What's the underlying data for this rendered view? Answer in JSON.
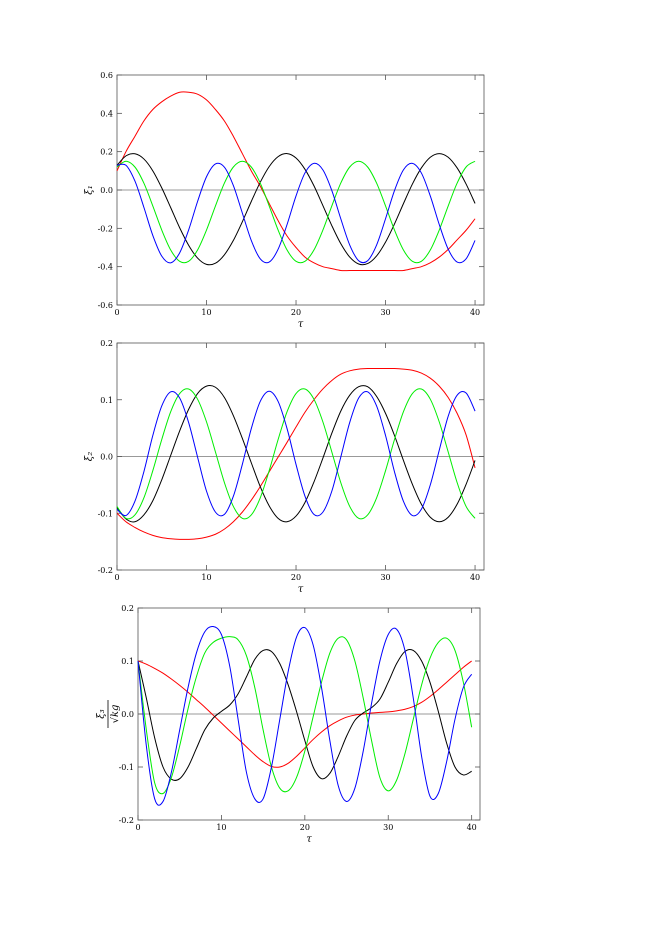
{
  "chart_data": [
    {
      "type": "line",
      "ylabel": "ξ₁",
      "xlabel": "τ",
      "x": [
        0,
        1,
        2,
        3,
        4,
        5,
        6,
        7,
        8,
        9,
        10,
        11,
        12,
        13,
        14,
        15,
        16,
        17,
        18,
        19,
        20,
        21,
        22,
        23,
        24,
        25,
        26,
        27,
        28,
        29,
        30,
        31,
        32,
        33,
        34,
        35,
        36,
        37,
        38,
        39,
        40
      ],
      "xlim": [
        0,
        41
      ],
      "xticks": [
        0,
        10,
        20,
        30,
        40
      ],
      "ylim": [
        -0.6,
        0.6
      ],
      "yticks": [
        0.6,
        0.4,
        0.2,
        {
          "value": 0,
          "label": "0.0"
        },
        -0.2,
        -0.4,
        -0.6
      ],
      "series": [
        {
          "color": "#ff0000",
          "values": [
            0.1,
            0.2,
            0.28,
            0.36,
            0.42,
            0.46,
            0.49,
            0.51,
            0.51,
            0.5,
            0.47,
            0.42,
            0.36,
            0.28,
            0.19,
            0.1,
            0.02,
            -0.07,
            -0.16,
            -0.24,
            -0.3,
            -0.35,
            -0.38,
            -0.4,
            -0.41,
            -0.42,
            -0.42,
            -0.42,
            -0.42,
            -0.42,
            -0.42,
            -0.42,
            -0.42,
            -0.41,
            -0.4,
            -0.38,
            -0.35,
            -0.31,
            -0.26,
            -0.21,
            -0.15
          ]
        },
        {
          "color": "#000000",
          "values": [
            0.129,
            0.178,
            0.189,
            0.162,
            0.1,
            0.011,
            -0.092,
            -0.197,
            -0.288,
            -0.355,
            -0.388,
            -0.382,
            -0.338,
            -0.263,
            -0.166,
            -0.06,
            0.04,
            0.122,
            0.174,
            0.19,
            0.167,
            0.108,
            0.022,
            -0.081,
            -0.186,
            -0.28,
            -0.35,
            -0.386,
            -0.384,
            -0.344,
            -0.272,
            -0.177,
            -0.071,
            0.031,
            0.115,
            0.171,
            0.19,
            0.171,
            0.115,
            0.031,
            -0.07
          ]
        },
        {
          "color": "#00ee00",
          "values": [
            0.12,
            0.15,
            0.12,
            0.036,
            -0.083,
            -0.209,
            -0.313,
            -0.372,
            -0.372,
            -0.313,
            -0.209,
            -0.083,
            0.036,
            0.12,
            0.15,
            0.12,
            0.036,
            -0.083,
            -0.209,
            -0.313,
            -0.372,
            -0.372,
            -0.313,
            -0.209,
            -0.083,
            0.036,
            0.12,
            0.15,
            0.12,
            0.036,
            -0.083,
            -0.209,
            -0.313,
            -0.372,
            -0.372,
            -0.313,
            -0.209,
            -0.083,
            0.036,
            0.12,
            0.15
          ]
        },
        {
          "color": "#0000ff",
          "values": [
            0.129,
            0.129,
            0.047,
            -0.09,
            -0.237,
            -0.345,
            -0.38,
            -0.328,
            -0.209,
            -0.06,
            0.069,
            0.136,
            0.119,
            0.023,
            -0.12,
            -0.263,
            -0.359,
            -0.376,
            -0.309,
            -0.18,
            -0.031,
            0.089,
            0.139,
            0.105,
            -0.003,
            -0.15,
            -0.287,
            -0.369,
            -0.369,
            -0.287,
            -0.15,
            -0.003,
            0.105,
            0.139,
            0.089,
            -0.031,
            -0.18,
            -0.309,
            -0.376,
            -0.359,
            -0.263
          ]
        }
      ]
    },
    {
      "type": "line",
      "ylabel": "ξ₂",
      "xlabel": "τ",
      "x": [
        0,
        1,
        2,
        3,
        4,
        5,
        6,
        7,
        8,
        9,
        10,
        11,
        12,
        13,
        14,
        15,
        16,
        17,
        18,
        19,
        20,
        21,
        22,
        23,
        24,
        25,
        26,
        27,
        28,
        29,
        30,
        31,
        32,
        33,
        34,
        35,
        36,
        37,
        38,
        39,
        40
      ],
      "xlim": [
        0,
        41
      ],
      "xticks": [
        0,
        10,
        20,
        30,
        40
      ],
      "ylim": [
        -0.2,
        0.2
      ],
      "yticks": [
        0.2,
        0.1,
        {
          "value": 0,
          "label": "0.0"
        },
        -0.1,
        -0.2
      ],
      "series": [
        {
          "color": "#ff0000",
          "values": [
            -0.1,
            -0.115,
            -0.125,
            -0.133,
            -0.139,
            -0.143,
            -0.145,
            -0.146,
            -0.146,
            -0.145,
            -0.142,
            -0.137,
            -0.128,
            -0.115,
            -0.098,
            -0.077,
            -0.053,
            -0.027,
            -0.001,
            0.025,
            0.052,
            0.078,
            0.1,
            0.119,
            0.134,
            0.145,
            0.151,
            0.154,
            0.155,
            0.155,
            0.155,
            0.155,
            0.154,
            0.152,
            0.147,
            0.138,
            0.124,
            0.104,
            0.076,
            0.038,
            -0.02
          ]
        },
        {
          "color": "#000000",
          "values": [
            -0.09,
            -0.11,
            -0.115,
            -0.103,
            -0.078,
            -0.041,
            0.002,
            0.045,
            0.083,
            0.111,
            0.124,
            0.122,
            0.104,
            0.072,
            0.032,
            -0.011,
            -0.053,
            -0.087,
            -0.109,
            -0.115,
            -0.105,
            -0.081,
            -0.045,
            -0.003,
            0.041,
            0.08,
            0.108,
            0.123,
            0.123,
            0.106,
            0.076,
            0.037,
            -0.007,
            -0.049,
            -0.084,
            -0.107,
            -0.115,
            -0.107,
            -0.084,
            -0.049,
            -0.007
          ]
        },
        {
          "color": "#00ee00",
          "values": [
            -0.088,
            -0.109,
            -0.103,
            -0.073,
            -0.025,
            0.03,
            0.079,
            0.111,
            0.119,
            0.101,
            0.061,
            0.008,
            -0.046,
            -0.088,
            -0.109,
            -0.103,
            -0.073,
            -0.025,
            0.03,
            0.079,
            0.111,
            0.119,
            0.101,
            0.061,
            0.008,
            -0.046,
            -0.088,
            -0.109,
            -0.103,
            -0.073,
            -0.025,
            0.03,
            0.079,
            0.111,
            0.119,
            0.101,
            0.061,
            0.008,
            -0.046,
            -0.088,
            -0.109
          ]
        },
        {
          "color": "#0000ff",
          "values": [
            -0.093,
            -0.104,
            -0.079,
            -0.027,
            0.037,
            0.089,
            0.114,
            0.103,
            0.06,
            -0.001,
            -0.061,
            -0.098,
            -0.102,
            -0.07,
            -0.014,
            0.049,
            0.097,
            0.115,
            0.097,
            0.049,
            -0.014,
            -0.07,
            -0.102,
            -0.098,
            -0.061,
            -0.001,
            0.06,
            0.103,
            0.114,
            0.089,
            0.037,
            -0.027,
            -0.079,
            -0.104,
            -0.093,
            -0.05,
            0.011,
            0.071,
            0.108,
            0.112,
            0.08
          ]
        }
      ]
    },
    {
      "type": "line",
      "ylabel": "ξ₃",
      "ylabel_under": "√kg",
      "xlabel": "τ",
      "x": [
        0,
        1,
        2,
        3,
        4,
        5,
        6,
        7,
        8,
        9,
        10,
        11,
        12,
        13,
        14,
        15,
        16,
        17,
        18,
        19,
        20,
        21,
        22,
        23,
        24,
        25,
        26,
        27,
        28,
        29,
        30,
        31,
        32,
        33,
        34,
        35,
        36,
        37,
        38,
        39,
        40
      ],
      "xlim": [
        0,
        41
      ],
      "xticks": [
        0,
        10,
        20,
        30,
        40
      ],
      "ylim": [
        -0.2,
        0.2
      ],
      "yticks": [
        0.2,
        0.1,
        {
          "value": 0,
          "label": "0.0"
        },
        -0.1,
        -0.2
      ],
      "series": [
        {
          "color": "#ff0000",
          "values": [
            0.1,
            0.094,
            0.086,
            0.077,
            0.066,
            0.054,
            0.041,
            0.027,
            0.013,
            -0.002,
            -0.017,
            -0.032,
            -0.047,
            -0.062,
            -0.077,
            -0.09,
            -0.099,
            -0.1,
            -0.093,
            -0.08,
            -0.064,
            -0.048,
            -0.034,
            -0.022,
            -0.013,
            -0.006,
            -0.002,
            0.0,
            0.002,
            0.003,
            0.004,
            0.006,
            0.009,
            0.014,
            0.022,
            0.033,
            0.046,
            0.06,
            0.074,
            0.088,
            0.1
          ]
        },
        {
          "color": "#000000",
          "values": [
            0.1,
            0.03,
            -0.045,
            -0.1,
            -0.123,
            -0.122,
            -0.1,
            -0.065,
            -0.03,
            -0.008,
            0.005,
            0.017,
            0.038,
            0.07,
            0.103,
            0.12,
            0.118,
            0.095,
            0.055,
            0.005,
            -0.05,
            -0.1,
            -0.122,
            -0.112,
            -0.08,
            -0.042,
            -0.012,
            0.002,
            0.012,
            0.028,
            0.06,
            0.095,
            0.118,
            0.12,
            0.1,
            0.06,
            0.005,
            -0.055,
            -0.1,
            -0.115,
            -0.108
          ]
        },
        {
          "color": "#00ee00",
          "values": [
            0.1,
            -0.03,
            -0.13,
            -0.15,
            -0.12,
            -0.06,
            0.01,
            0.07,
            0.115,
            0.135,
            0.143,
            0.146,
            0.14,
            0.11,
            0.05,
            -0.03,
            -0.1,
            -0.14,
            -0.145,
            -0.12,
            -0.07,
            -0.005,
            0.06,
            0.115,
            0.143,
            0.14,
            0.1,
            0.03,
            -0.05,
            -0.12,
            -0.145,
            -0.125,
            -0.075,
            -0.01,
            0.055,
            0.105,
            0.135,
            0.143,
            0.12,
            0.06,
            -0.025
          ]
        },
        {
          "color": "#0000ff",
          "values": [
            0.1,
            -0.06,
            -0.16,
            -0.165,
            -0.11,
            -0.03,
            0.05,
            0.115,
            0.155,
            0.165,
            0.15,
            0.09,
            -0.01,
            -0.11,
            -0.16,
            -0.16,
            -0.1,
            -0.01,
            0.08,
            0.145,
            0.163,
            0.13,
            0.05,
            -0.05,
            -0.135,
            -0.165,
            -0.14,
            -0.07,
            0.02,
            0.1,
            0.15,
            0.16,
            0.12,
            0.03,
            -0.08,
            -0.155,
            -0.15,
            -0.09,
            -0.01,
            0.05,
            0.075
          ]
        }
      ]
    }
  ]
}
